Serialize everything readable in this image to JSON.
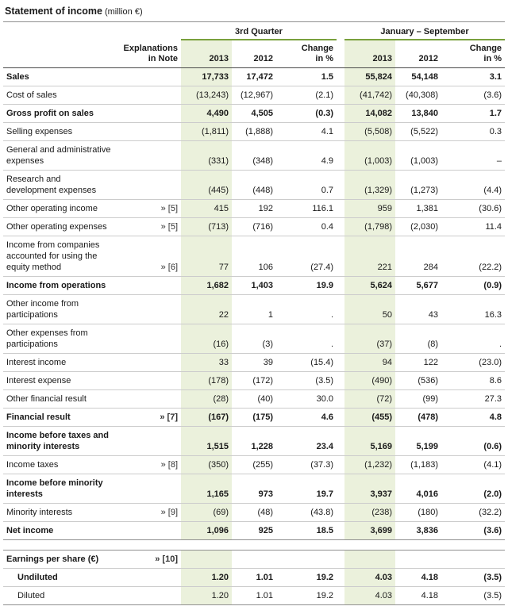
{
  "title": {
    "main": "Statement of income",
    "unit": "(million €)"
  },
  "colors": {
    "highlight_column": "#ebf1dc",
    "group_underline": "#79a03c",
    "header_rule": "#4a4a4a",
    "row_rule": "#cccccc"
  },
  "table": {
    "groups": [
      "3rd Quarter",
      "January – September"
    ],
    "header": {
      "explanations_line1": "Explanations",
      "explanations_line2": "in Note",
      "year_current": "2013",
      "year_prior": "2012",
      "change_line1": "Change",
      "change_line2": "in %"
    },
    "rows": [
      {
        "label": "Sales",
        "note": "",
        "bold": true,
        "values": [
          "17,733",
          "17,472",
          "1.5",
          "55,824",
          "54,148",
          "3.1"
        ]
      },
      {
        "label": "Cost of sales",
        "note": "",
        "bold": false,
        "values": [
          "(13,243)",
          "(12,967)",
          "(2.1)",
          "(41,742)",
          "(40,308)",
          "(3.6)"
        ]
      },
      {
        "label": "Gross profit on sales",
        "note": "",
        "bold": true,
        "values": [
          "4,490",
          "4,505",
          "(0.3)",
          "14,082",
          "13,840",
          "1.7"
        ]
      },
      {
        "label": "Selling expenses",
        "note": "",
        "bold": false,
        "values": [
          "(1,811)",
          "(1,888)",
          "4.1",
          "(5,508)",
          "(5,522)",
          "0.3"
        ]
      },
      {
        "label": "General and administrative expenses",
        "note": "",
        "bold": false,
        "values": [
          "(331)",
          "(348)",
          "4.9",
          "(1,003)",
          "(1,003)",
          "–"
        ]
      },
      {
        "label": "Research and development expenses",
        "note": "",
        "bold": false,
        "values": [
          "(445)",
          "(448)",
          "0.7",
          "(1,329)",
          "(1,273)",
          "(4.4)"
        ]
      },
      {
        "label": "Other operating income",
        "note": "» [5]",
        "bold": false,
        "values": [
          "415",
          "192",
          "116.1",
          "959",
          "1,381",
          "(30.6)"
        ]
      },
      {
        "label": "Other operating expenses",
        "note": "» [5]",
        "bold": false,
        "values": [
          "(713)",
          "(716)",
          "0.4",
          "(1,798)",
          "(2,030)",
          "11.4"
        ]
      },
      {
        "label": "Income from companies accounted for using the equity method",
        "note": "» [6]",
        "bold": false,
        "values": [
          "77",
          "106",
          "(27.4)",
          "221",
          "284",
          "(22.2)"
        ]
      },
      {
        "label": "Income from operations",
        "note": "",
        "bold": true,
        "values": [
          "1,682",
          "1,403",
          "19.9",
          "5,624",
          "5,677",
          "(0.9)"
        ]
      },
      {
        "label": "Other income from participations",
        "note": "",
        "bold": false,
        "values": [
          "22",
          "1",
          ".",
          "50",
          "43",
          "16.3"
        ]
      },
      {
        "label": "Other expenses from participations",
        "note": "",
        "bold": false,
        "values": [
          "(16)",
          "(3)",
          ".",
          "(37)",
          "(8)",
          "."
        ]
      },
      {
        "label": "Interest income",
        "note": "",
        "bold": false,
        "values": [
          "33",
          "39",
          "(15.4)",
          "94",
          "122",
          "(23.0)"
        ]
      },
      {
        "label": "Interest expense",
        "note": "",
        "bold": false,
        "values": [
          "(178)",
          "(172)",
          "(3.5)",
          "(490)",
          "(536)",
          "8.6"
        ]
      },
      {
        "label": "Other financial result",
        "note": "",
        "bold": false,
        "values": [
          "(28)",
          "(40)",
          "30.0",
          "(72)",
          "(99)",
          "27.3"
        ]
      },
      {
        "label": "Financial result",
        "note": "» [7]",
        "bold": true,
        "values": [
          "(167)",
          "(175)",
          "4.6",
          "(455)",
          "(478)",
          "4.8"
        ]
      },
      {
        "label": "Income before taxes and minority interests",
        "note": "",
        "bold": true,
        "values": [
          "1,515",
          "1,228",
          "23.4",
          "5,169",
          "5,199",
          "(0.6)"
        ]
      },
      {
        "label": "Income taxes",
        "note": "» [8]",
        "bold": false,
        "values": [
          "(350)",
          "(255)",
          "(37.3)",
          "(1,232)",
          "(1,183)",
          "(4.1)"
        ]
      },
      {
        "label": "Income before minority interests",
        "note": "",
        "bold": true,
        "values": [
          "1,165",
          "973",
          "19.7",
          "3,937",
          "4,016",
          "(2.0)"
        ]
      },
      {
        "label": "Minority interests",
        "note": "» [9]",
        "bold": false,
        "values": [
          "(69)",
          "(48)",
          "(43.8)",
          "(238)",
          "(180)",
          "(32.2)"
        ]
      },
      {
        "label": "Net income",
        "note": "",
        "bold": true,
        "values": [
          "1,096",
          "925",
          "18.5",
          "3,699",
          "3,836",
          "(3.6)"
        ]
      }
    ],
    "eps": {
      "header_row": {
        "label": "Earnings per share (€)",
        "note": "» [10]",
        "bold": true
      },
      "rows": [
        {
          "label": "Undiluted",
          "note": "",
          "bold": true,
          "values": [
            "1.20",
            "1.01",
            "19.2",
            "4.03",
            "4.18",
            "(3.5)"
          ]
        },
        {
          "label": "Diluted",
          "note": "",
          "bold": false,
          "values": [
            "1.20",
            "1.01",
            "19.2",
            "4.03",
            "4.18",
            "(3.5)"
          ]
        }
      ]
    }
  }
}
